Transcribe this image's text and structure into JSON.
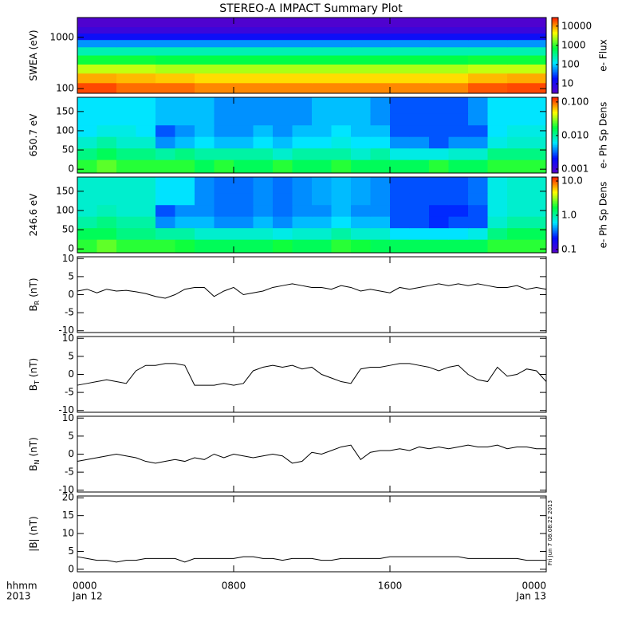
{
  "title": "STEREO-A IMPACT Summary Plot",
  "xlim": [
    0,
    24
  ],
  "xticks": [
    {
      "value": 0,
      "label": "0000"
    },
    {
      "value": 8,
      "label": "0800"
    },
    {
      "value": 16,
      "label": "1600"
    },
    {
      "value": 24,
      "label": "0000"
    }
  ],
  "x_dates": [
    {
      "value": 0,
      "label": "Jan 12"
    },
    {
      "value": 24,
      "label": "Jan 13"
    }
  ],
  "corner_labels": [
    "hhmm",
    "2013"
  ],
  "timestamp": "Fri Jun  7 08:08:22 2013",
  "colormap": [
    "#5a00c8",
    "#0010ff",
    "#00e8ff",
    "#00ff40",
    "#ffff00",
    "#ff2000"
  ],
  "chart_data": [
    {
      "type": "heatmap",
      "ylabel": "SWEA (eV)",
      "ylog": true,
      "ylim": [
        81,
        2425
      ],
      "yticks": [
        100,
        1000
      ],
      "x_edges": [
        0,
        2,
        4,
        6,
        8,
        10,
        12,
        14,
        16,
        18,
        20,
        22,
        24
      ],
      "y_edges": [
        81,
        130,
        200,
        300,
        450,
        650,
        900,
        1200,
        1600,
        2425
      ],
      "z": [
        [
          20000,
          15000,
          15000,
          12000,
          12000,
          12000,
          12000,
          12000,
          12000,
          12000,
          18000,
          20000
        ],
        [
          9000,
          8000,
          7000,
          6000,
          6000,
          6000,
          6000,
          6000,
          6000,
          6000,
          8000,
          9000
        ],
        [
          3000,
          3000,
          2500,
          2500,
          2500,
          2500,
          2500,
          2500,
          2500,
          2500,
          3000,
          3000
        ],
        [
          800,
          800,
          700,
          700,
          700,
          700,
          700,
          700,
          700,
          700,
          800,
          800
        ],
        [
          250,
          250,
          250,
          250,
          250,
          250,
          250,
          250,
          250,
          250,
          250,
          250
        ],
        [
          60,
          60,
          60,
          60,
          60,
          60,
          60,
          60,
          60,
          60,
          60,
          60
        ],
        [
          15,
          15,
          15,
          15,
          15,
          15,
          15,
          15,
          15,
          15,
          15,
          15
        ],
        [
          6,
          6,
          6,
          6,
          6,
          6,
          6,
          6,
          6,
          6,
          6,
          6
        ],
        [
          4,
          4,
          4,
          4,
          4,
          4,
          4,
          4,
          4,
          4,
          4,
          4
        ]
      ],
      "clim": [
        3.2,
        28000
      ],
      "cbticks": [
        10,
        100,
        1000,
        10000
      ],
      "cblabel": "e- Flux"
    },
    {
      "type": "heatmap",
      "ylabel": "650.7 eV",
      "ylog": false,
      "ylim": [
        -10,
        187
      ],
      "yticks": [
        0,
        50,
        100,
        150
      ],
      "x_edges": [
        0,
        1,
        2,
        3,
        4,
        5,
        6,
        7,
        8,
        9,
        10,
        11,
        12,
        13,
        14,
        15,
        16,
        17,
        18,
        19,
        20,
        21,
        22,
        23,
        24
      ],
      "y_edges": [
        -10,
        25,
        55,
        85,
        115,
        145,
        187
      ],
      "z": [
        [
          0.02,
          0.025,
          0.02,
          0.02,
          0.02,
          0.02,
          0.015,
          0.02,
          0.015,
          0.015,
          0.02,
          0.015,
          0.015,
          0.02,
          0.015,
          0.015,
          0.015,
          0.015,
          0.02,
          0.015,
          0.015,
          0.02,
          0.02,
          0.02
        ],
        [
          0.012,
          0.015,
          0.012,
          0.012,
          0.01,
          0.012,
          0.01,
          0.01,
          0.01,
          0.01,
          0.008,
          0.01,
          0.01,
          0.01,
          0.008,
          0.01,
          0.007,
          0.007,
          0.007,
          0.008,
          0.008,
          0.012,
          0.012,
          0.012
        ],
        [
          0.008,
          0.01,
          0.008,
          0.008,
          0.004,
          0.005,
          0.006,
          0.005,
          0.005,
          0.006,
          0.005,
          0.006,
          0.006,
          0.007,
          0.006,
          0.006,
          0.004,
          0.004,
          0.003,
          0.004,
          0.004,
          0.007,
          0.008,
          0.008
        ],
        [
          0.006,
          0.007,
          0.007,
          0.006,
          0.003,
          0.004,
          0.005,
          0.004,
          0.004,
          0.005,
          0.004,
          0.005,
          0.005,
          0.006,
          0.005,
          0.005,
          0.003,
          0.003,
          0.003,
          0.003,
          0.003,
          0.006,
          0.007,
          0.007
        ],
        [
          0.006,
          0.006,
          0.006,
          0.006,
          0.005,
          0.005,
          0.005,
          0.004,
          0.004,
          0.004,
          0.004,
          0.004,
          0.005,
          0.005,
          0.005,
          0.004,
          0.003,
          0.003,
          0.003,
          0.003,
          0.004,
          0.006,
          0.006,
          0.006
        ],
        [
          0.006,
          0.006,
          0.006,
          0.006,
          0.005,
          0.005,
          0.005,
          0.004,
          0.004,
          0.004,
          0.004,
          0.004,
          0.005,
          0.005,
          0.005,
          0.004,
          0.003,
          0.003,
          0.003,
          0.003,
          0.004,
          0.006,
          0.006,
          0.006
        ]
      ],
      "clim": [
        0.00076,
        0.138
      ],
      "cbticks": [
        0.001,
        {
          "value": 0.01,
          "label": "0.010"
        },
        {
          "value": 0.1,
          "label": "0.100"
        }
      ],
      "cblabel": "e- Ph Sp Dens"
    },
    {
      "type": "heatmap",
      "ylabel": "246.6 eV",
      "ylog": false,
      "ylim": [
        -10,
        187
      ],
      "yticks": [
        0,
        50,
        100,
        150
      ],
      "x_edges": [
        0,
        1,
        2,
        3,
        4,
        5,
        6,
        7,
        8,
        9,
        10,
        11,
        12,
        13,
        14,
        15,
        16,
        17,
        18,
        19,
        20,
        21,
        22,
        23,
        24
      ],
      "y_edges": [
        -10,
        25,
        55,
        85,
        115,
        145,
        187
      ],
      "z": [
        [
          2,
          2.5,
          2,
          2,
          2,
          1.8,
          1.5,
          1.5,
          1.5,
          1.5,
          1.8,
          1.5,
          1.5,
          2,
          1.8,
          1.5,
          1.5,
          1.5,
          1.5,
          1.5,
          1.5,
          2,
          2,
          2
        ],
        [
          1.5,
          1.5,
          1.2,
          1.2,
          1,
          1,
          0.8,
          0.8,
          0.8,
          0.8,
          0.7,
          0.8,
          0.8,
          1,
          0.8,
          0.8,
          0.6,
          0.6,
          0.6,
          0.6,
          0.7,
          1.2,
          1.5,
          1.5
        ],
        [
          1,
          1.2,
          1,
          1,
          0.4,
          0.5,
          0.5,
          0.4,
          0.4,
          0.5,
          0.4,
          0.5,
          0.5,
          0.6,
          0.5,
          0.5,
          0.3,
          0.3,
          0.25,
          0.3,
          0.3,
          0.8,
          1,
          1
        ],
        [
          0.8,
          0.9,
          0.8,
          0.8,
          0.3,
          0.4,
          0.4,
          0.35,
          0.35,
          0.4,
          0.35,
          0.4,
          0.4,
          0.5,
          0.4,
          0.4,
          0.3,
          0.3,
          0.25,
          0.25,
          0.3,
          0.7,
          0.8,
          0.8
        ],
        [
          0.8,
          0.8,
          0.8,
          0.8,
          0.6,
          0.6,
          0.4,
          0.35,
          0.35,
          0.4,
          0.35,
          0.4,
          0.45,
          0.5,
          0.45,
          0.4,
          0.3,
          0.3,
          0.3,
          0.3,
          0.35,
          0.7,
          0.8,
          0.8
        ],
        [
          0.8,
          0.8,
          0.8,
          0.8,
          0.6,
          0.6,
          0.4,
          0.35,
          0.35,
          0.4,
          0.35,
          0.4,
          0.45,
          0.5,
          0.45,
          0.4,
          0.3,
          0.3,
          0.3,
          0.3,
          0.35,
          0.7,
          0.8,
          0.8
        ]
      ],
      "clim": [
        0.08,
        13.1
      ],
      "cbticks": [
        0.1,
        {
          "value": 1,
          "label": "1.0"
        },
        {
          "value": 10,
          "label": "10.0"
        }
      ],
      "cblabel": "e- Ph Sp Dens"
    },
    {
      "type": "line",
      "ylabel": "B",
      "ylabel_sub": "R",
      "ylabel_unit": "(nT)",
      "ylim": [
        -10.5,
        10.5
      ],
      "yticks": [
        -10,
        -5,
        0,
        5,
        10
      ],
      "color": "#000000",
      "x": [
        0,
        0.5,
        1,
        1.5,
        2,
        2.5,
        3,
        3.5,
        4,
        4.5,
        5,
        5.5,
        6,
        6.5,
        7,
        7.5,
        8,
        8.5,
        9,
        9.5,
        10,
        10.5,
        11,
        11.5,
        12,
        12.5,
        13,
        13.5,
        14,
        14.5,
        15,
        15.5,
        16,
        16.5,
        17,
        17.5,
        18,
        18.5,
        19,
        19.5,
        20,
        20.5,
        21,
        21.5,
        22,
        22.5,
        23,
        23.5,
        24
      ],
      "values": [
        1,
        1.5,
        0.5,
        1.5,
        1,
        1.2,
        0.8,
        0.3,
        -0.5,
        -1,
        0,
        1.5,
        2,
        2,
        -0.5,
        1,
        2,
        0,
        0.5,
        1,
        2,
        2.5,
        3,
        2.5,
        2,
        2,
        1.5,
        2.5,
        2,
        1,
        1.5,
        1,
        0.5,
        2,
        1.5,
        2,
        2.5,
        3,
        2.5,
        3,
        2.5,
        3,
        2.5,
        2,
        2,
        2.5,
        1.5,
        2,
        1.5
      ]
    },
    {
      "type": "line",
      "ylabel": "B",
      "ylabel_sub": "T",
      "ylabel_unit": "(nT)",
      "ylim": [
        -10.5,
        10.5
      ],
      "yticks": [
        -10,
        -5,
        0,
        5,
        10
      ],
      "color": "#000000",
      "x": [
        0,
        0.5,
        1,
        1.5,
        2,
        2.5,
        3,
        3.5,
        4,
        4.5,
        5,
        5.5,
        6,
        6.5,
        7,
        7.5,
        8,
        8.5,
        9,
        9.5,
        10,
        10.5,
        11,
        11.5,
        12,
        12.5,
        13,
        13.5,
        14,
        14.5,
        15,
        15.5,
        16,
        16.5,
        17,
        17.5,
        18,
        18.5,
        19,
        19.5,
        20,
        20.5,
        21,
        21.5,
        22,
        22.5,
        23,
        23.5,
        24
      ],
      "values": [
        -3,
        -2.5,
        -2,
        -1.5,
        -2,
        -2.5,
        1,
        2.5,
        2.5,
        3,
        3,
        2.5,
        -3,
        -3,
        -3,
        -2.5,
        -3,
        -2.5,
        1,
        2,
        2.5,
        2,
        2.5,
        1.5,
        2,
        0,
        -1,
        -2,
        -2.5,
        1.5,
        2,
        2,
        2.5,
        3,
        3,
        2.5,
        2,
        1,
        2,
        2.5,
        0,
        -1.5,
        -2,
        2,
        -0.5,
        0,
        1.5,
        1,
        -2
      ]
    },
    {
      "type": "line",
      "ylabel": "B",
      "ylabel_sub": "N",
      "ylabel_unit": "(nT)",
      "ylim": [
        -10.5,
        10.5
      ],
      "yticks": [
        -10,
        -5,
        0,
        5,
        10
      ],
      "color": "#000000",
      "x": [
        0,
        0.5,
        1,
        1.5,
        2,
        2.5,
        3,
        3.5,
        4,
        4.5,
        5,
        5.5,
        6,
        6.5,
        7,
        7.5,
        8,
        8.5,
        9,
        9.5,
        10,
        10.5,
        11,
        11.5,
        12,
        12.5,
        13,
        13.5,
        14,
        14.5,
        15,
        15.5,
        16,
        16.5,
        17,
        17.5,
        18,
        18.5,
        19,
        19.5,
        20,
        20.5,
        21,
        21.5,
        22,
        22.5,
        23,
        23.5,
        24
      ],
      "values": [
        -2,
        -1.5,
        -1,
        -0.5,
        0,
        -0.5,
        -1,
        -2,
        -2.5,
        -2,
        -1.5,
        -2,
        -1,
        -1.5,
        0,
        -1,
        0,
        -0.5,
        -1,
        -0.5,
        0,
        -0.5,
        -2.5,
        -2,
        0.5,
        0,
        1,
        2,
        2.5,
        -1.5,
        0.5,
        1,
        1,
        1.5,
        1,
        2,
        1.5,
        2,
        1.5,
        2,
        2.5,
        2,
        2,
        2.5,
        1.5,
        2,
        2,
        1.5,
        1.5
      ]
    },
    {
      "type": "line",
      "ylabel": "|B| (nT)",
      "ylim": [
        -0.7,
        20.5
      ],
      "yticks": [
        0,
        5,
        10,
        15,
        20
      ],
      "color": "#000000",
      "x": [
        0,
        0.5,
        1,
        1.5,
        2,
        2.5,
        3,
        3.5,
        4,
        4.5,
        5,
        5.5,
        6,
        6.5,
        7,
        7.5,
        8,
        8.5,
        9,
        9.5,
        10,
        10.5,
        11,
        11.5,
        12,
        12.5,
        13,
        13.5,
        14,
        14.5,
        15,
        15.5,
        16,
        16.5,
        17,
        17.5,
        18,
        18.5,
        19,
        19.5,
        20,
        20.5,
        21,
        21.5,
        22,
        22.5,
        23,
        23.5,
        24
      ],
      "values": [
        3.5,
        3,
        2.5,
        2.5,
        2,
        2.5,
        2.5,
        3,
        3,
        3,
        3,
        2,
        3,
        3,
        3,
        3,
        3,
        3.5,
        3.5,
        3,
        3,
        2.5,
        3,
        3,
        3,
        2.5,
        2.5,
        3,
        3,
        3,
        3,
        3,
        3.5,
        3.5,
        3.5,
        3.5,
        3.5,
        3.5,
        3.5,
        3.5,
        3,
        3,
        3,
        3,
        3,
        3,
        2.5,
        2.5,
        2.5
      ]
    }
  ]
}
